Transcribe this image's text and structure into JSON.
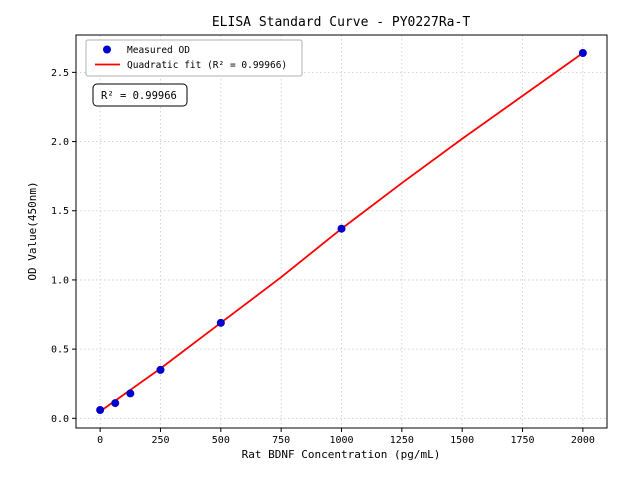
{
  "chart_data": {
    "type": "scatter",
    "title": "ELISA Standard Curve - PY0227Ra-T",
    "xlabel": "Rat BDNF Concentration (pg/mL)",
    "ylabel": "OD Value(450nm)",
    "xlim": [
      -100,
      2100
    ],
    "ylim": [
      -0.07,
      2.77
    ],
    "grid": true,
    "legend_position": "upper left",
    "annotation": "R² = 0.99966",
    "background_color": "#ffffff",
    "grid_color": "#c9c9c9",
    "xticks": {
      "values": [
        0,
        250,
        500,
        750,
        1000,
        1250,
        1500,
        1750,
        2000
      ],
      "labels": [
        "0",
        "250",
        "500",
        "750",
        "1000",
        "1250",
        "1500",
        "1750",
        "2000"
      ]
    },
    "yticks": {
      "values": [
        0.0,
        0.5,
        1.0,
        1.5,
        2.0,
        2.5
      ],
      "labels": [
        "0.0",
        "0.5",
        "1.0",
        "1.5",
        "2.0",
        "2.5"
      ]
    },
    "series": [
      {
        "name": "Measured OD",
        "type": "scatter",
        "color": "#0000cc",
        "x": [
          0,
          62.5,
          125,
          250,
          500,
          1000,
          2000
        ],
        "y": [
          0.06,
          0.11,
          0.18,
          0.35,
          0.69,
          1.37,
          2.64
        ]
      },
      {
        "name": "Quadratic fit (R² = 0.99966)",
        "type": "line",
        "color": "#ff0000",
        "x": [
          0,
          250,
          500,
          750,
          1000,
          1250,
          1500,
          1750,
          2000
        ],
        "y": [
          0.05,
          0.36,
          0.69,
          1.02,
          1.37,
          1.7,
          2.02,
          2.33,
          2.64
        ]
      }
    ]
  }
}
